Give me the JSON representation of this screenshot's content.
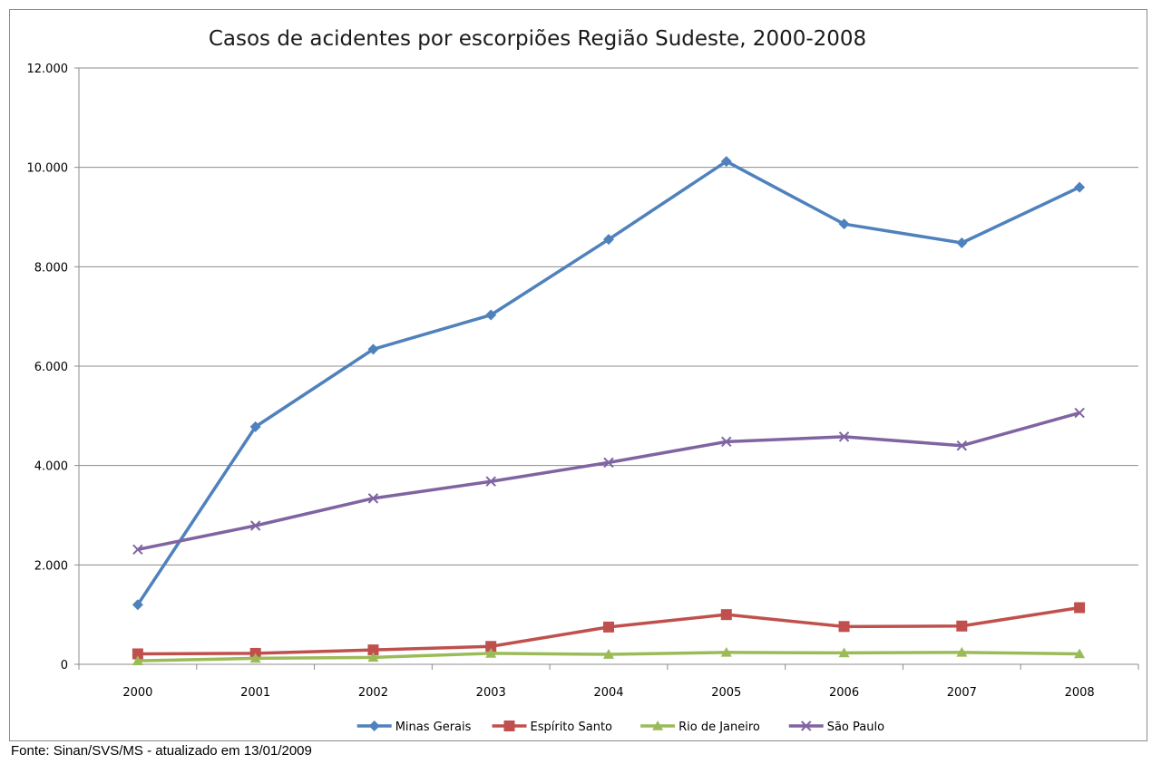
{
  "chart_data": {
    "type": "line",
    "title": "Casos de acidentes por escorpiões Região Sudeste, 2000-2008",
    "categories": [
      "2000",
      "2001",
      "2002",
      "2003",
      "2004",
      "2005",
      "2006",
      "2007",
      "2008"
    ],
    "yticks": [
      "0",
      "2.000",
      "4.000",
      "6.000",
      "8.000",
      "10.000",
      "12.000"
    ],
    "ylim": [
      0,
      12000
    ],
    "grid": true,
    "legend_position": "bottom",
    "series": [
      {
        "name": "Minas Gerais",
        "color": "#4f81bd",
        "marker": "diamond",
        "values": [
          1200,
          4780,
          6340,
          7030,
          8550,
          10120,
          8860,
          8480,
          9600
        ]
      },
      {
        "name": "Espírito Santo",
        "color": "#c0504d",
        "marker": "square",
        "values": [
          210,
          220,
          290,
          360,
          750,
          1000,
          760,
          770,
          1140
        ]
      },
      {
        "name": "Rio de Janeiro",
        "color": "#9bbb59",
        "marker": "triangle",
        "values": [
          70,
          120,
          140,
          220,
          200,
          240,
          230,
          240,
          210
        ]
      },
      {
        "name": "São Paulo",
        "color": "#8064a2",
        "marker": "x",
        "values": [
          2310,
          2790,
          3340,
          3680,
          4060,
          4480,
          4580,
          4400,
          5060
        ]
      }
    ]
  },
  "footer": "Fonte: Sinan/SVS/MS - atualizado em 13/01/2009"
}
